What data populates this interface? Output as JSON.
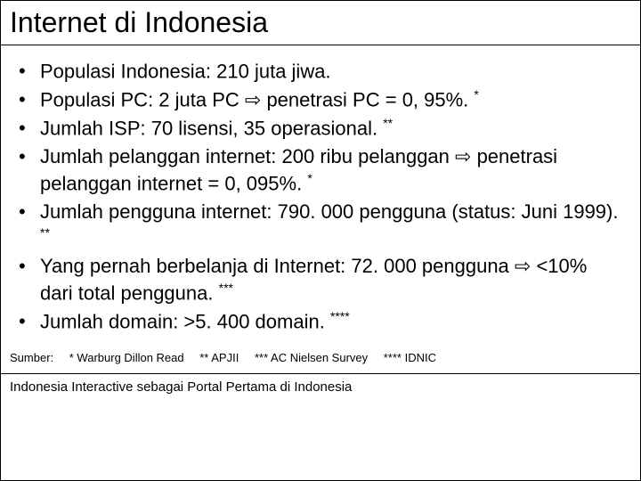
{
  "title": "Internet di Indonesia",
  "bullets": [
    {
      "text": "Populasi Indonesia: 210 juta jiwa.",
      "note": ""
    },
    {
      "text": "Populasi PC: 2 juta PC ⇨ penetrasi PC = 0, 95%.",
      "note": "*"
    },
    {
      "text": "Jumlah ISP: 70 lisensi, 35 operasional.",
      "note": "**"
    },
    {
      "text": "Jumlah pelanggan internet: 200 ribu pelanggan ⇨ penetrasi pelanggan internet = 0, 095%.",
      "note": "*"
    },
    {
      "text": "Jumlah pengguna internet: 790. 000 pengguna (status: Juni 1999).",
      "note": "**"
    },
    {
      "text": "Yang pernah berbelanja di Internet: 72. 000 pengguna ⇨ <10% dari total pengguna.",
      "note": "***"
    },
    {
      "text": "Jumlah domain: >5. 400 domain.",
      "note": "****"
    }
  ],
  "sources_label": "Sumber:",
  "sources": [
    "* Warburg Dillon Read",
    "** APJII",
    "*** AC Nielsen Survey",
    "**** IDNIC"
  ],
  "footer": "Indonesia Interactive sebagai Portal Pertama di Indonesia"
}
